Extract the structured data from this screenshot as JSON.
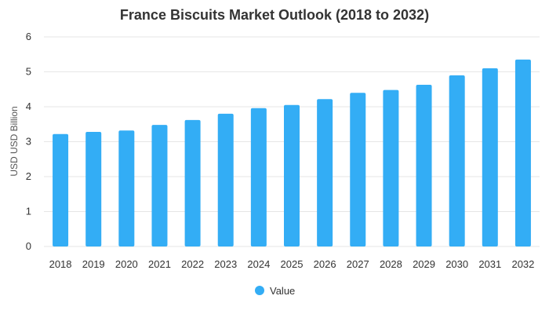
{
  "chart_data": {
    "type": "bar",
    "title": "France Biscuits Market Outlook (2018 to 2032)",
    "xlabel": "",
    "ylabel": "USD USD Billion",
    "categories": [
      "2018",
      "2019",
      "2020",
      "2021",
      "2022",
      "2023",
      "2024",
      "2025",
      "2026",
      "2027",
      "2028",
      "2029",
      "2030",
      "2031",
      "2032"
    ],
    "series": [
      {
        "name": "Value",
        "color": "#33adf5",
        "values": [
          3.22,
          3.28,
          3.32,
          3.48,
          3.62,
          3.8,
          3.96,
          4.05,
          4.22,
          4.4,
          4.48,
          4.63,
          4.9,
          5.1,
          5.35
        ]
      }
    ],
    "ylim": [
      0,
      6
    ],
    "yticks": [
      0,
      1,
      2,
      3,
      4,
      5,
      6
    ],
    "grid": true,
    "legend_position": "bottom-center"
  }
}
